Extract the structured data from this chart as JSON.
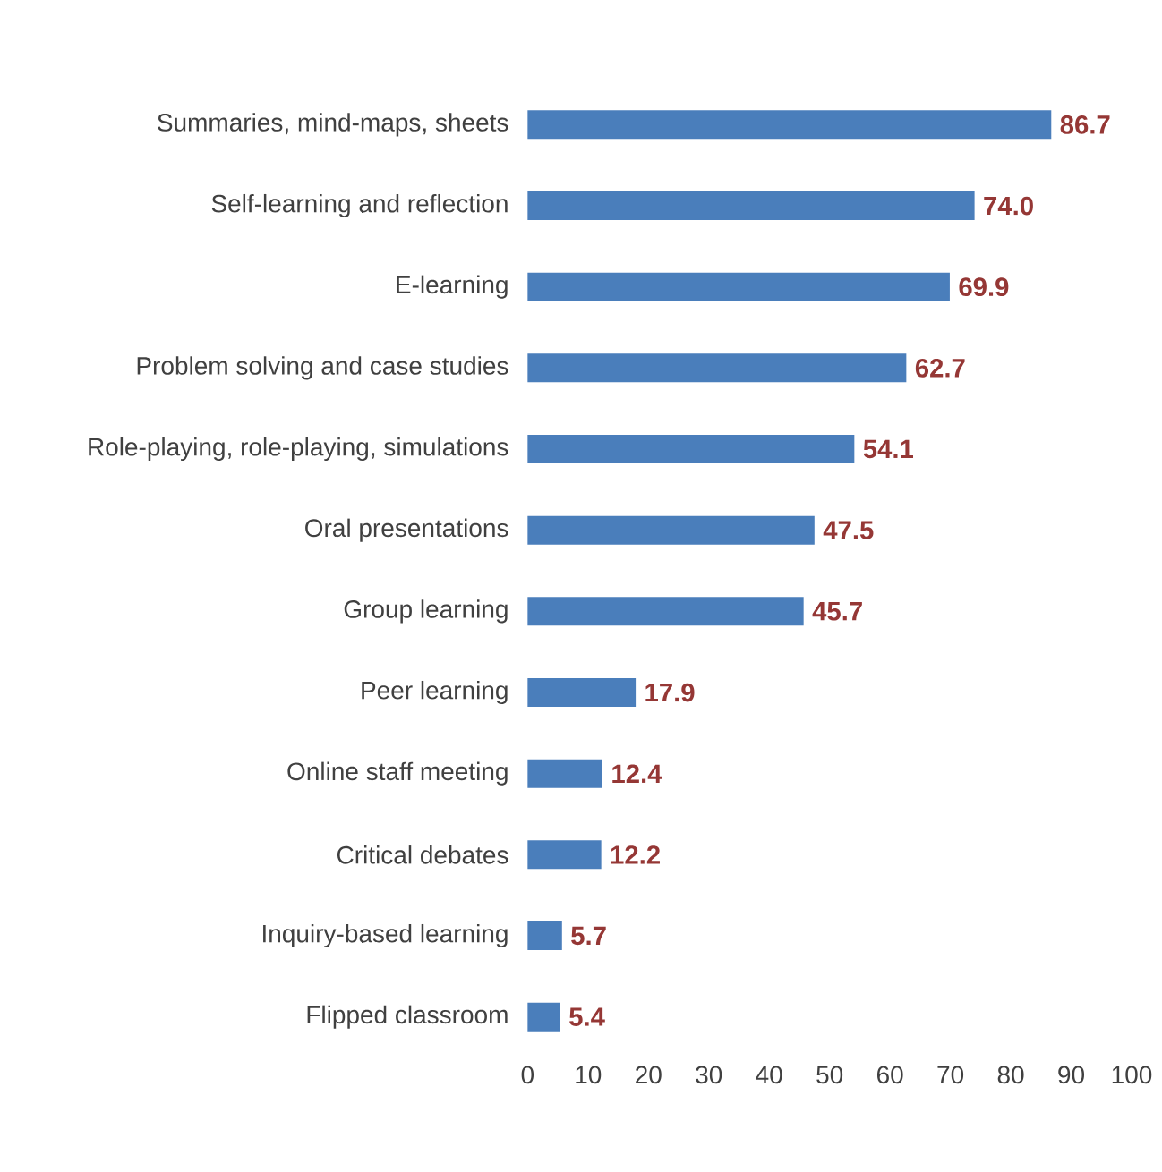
{
  "chart_data": {
    "type": "bar",
    "orientation": "horizontal",
    "categories": [
      "Summaries, mind-maps, sheets",
      "Self-learning and reflection",
      "E-learning",
      "Problem solving and case studies",
      "Role-playing, role-playing, simulations",
      "Oral presentations",
      "Group learning",
      "Peer learning",
      "Online staff meeting",
      "Critical debates",
      "Inquiry-based learning",
      "Flipped classroom"
    ],
    "values": [
      86.7,
      74.0,
      69.9,
      62.7,
      54.1,
      47.5,
      45.7,
      17.9,
      12.4,
      12.2,
      5.7,
      5.4
    ],
    "value_labels": [
      "86.7",
      "74.0",
      "69.9",
      "62.7",
      "54.1",
      "47.5",
      "45.7",
      "17.9",
      "12.4",
      "12.2",
      "5.7",
      "5.4"
    ],
    "color": "#4a7ebb",
    "xlim": [
      0,
      100
    ],
    "xticks": [
      0,
      10,
      20,
      30,
      40,
      50,
      60,
      70,
      80,
      90,
      100
    ]
  }
}
